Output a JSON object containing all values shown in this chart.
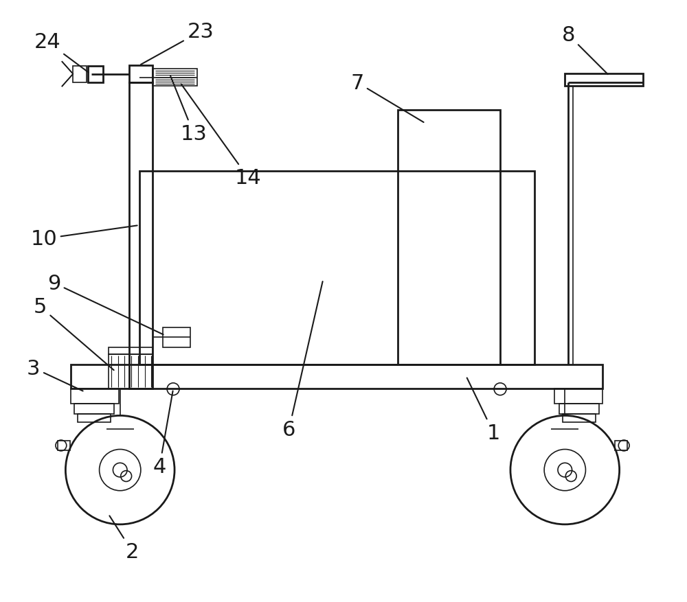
{
  "bg_color": "#ffffff",
  "line_color": "#1a1a1a",
  "lw_main": 2.0,
  "lw_thin": 1.2,
  "lw_detail": 0.8,
  "fig_width": 10.0,
  "fig_height": 8.78,
  "font_size": 22
}
